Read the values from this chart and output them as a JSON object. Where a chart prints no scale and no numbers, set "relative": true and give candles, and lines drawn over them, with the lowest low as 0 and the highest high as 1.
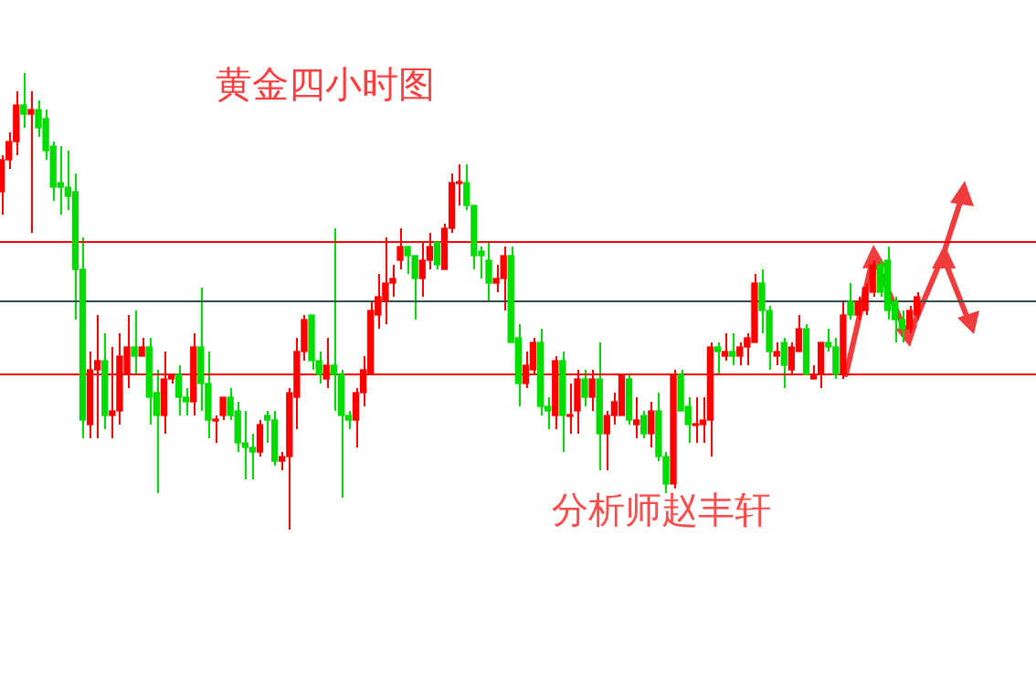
{
  "chart_data": {
    "type": "candlestick",
    "title": "黄金四小时图",
    "annotations": [
      "分析师赵丰轩"
    ],
    "relative": true,
    "tick_labels": false,
    "categories": [
      null,
      null,
      null,
      null,
      null,
      null,
      null,
      null,
      null,
      null,
      null,
      null,
      null,
      null,
      null,
      null,
      null,
      null,
      null,
      null,
      null,
      null,
      null,
      null,
      null,
      null,
      null,
      null,
      null,
      null,
      null,
      null,
      null,
      null,
      null,
      null,
      null,
      null,
      null,
      null,
      null,
      null,
      null,
      null,
      null,
      null,
      null,
      null,
      null,
      null,
      null,
      null,
      null,
      null,
      null,
      null,
      null,
      null,
      null,
      null,
      null,
      null,
      null,
      null,
      null,
      null,
      null,
      null,
      null,
      null,
      null,
      null,
      null,
      null,
      null,
      null,
      null,
      null,
      null,
      null,
      null,
      null,
      null,
      null,
      null,
      null,
      null,
      null,
      null,
      null,
      null,
      null,
      null,
      null,
      null,
      null,
      null,
      null,
      null,
      null,
      null,
      null,
      null,
      null,
      null,
      null,
      null,
      null,
      null,
      null,
      null,
      null,
      null,
      null,
      null,
      null,
      null,
      null,
      null,
      null,
      null,
      null,
      null,
      null,
      null
    ],
    "ohlc": [
      [
        0.74,
        0.82,
        0.69,
        0.81
      ],
      [
        0.81,
        0.87,
        0.79,
        0.85
      ],
      [
        0.85,
        0.96,
        0.82,
        0.93
      ],
      [
        0.93,
        1.0,
        0.88,
        0.91
      ],
      [
        0.91,
        0.96,
        0.65,
        0.92
      ],
      [
        0.92,
        0.94,
        0.86,
        0.88
      ],
      [
        0.9,
        0.92,
        0.81,
        0.83
      ],
      [
        0.84,
        0.85,
        0.72,
        0.75
      ],
      [
        0.76,
        0.84,
        0.69,
        0.75
      ],
      [
        0.75,
        0.83,
        0.7,
        0.73
      ],
      [
        0.74,
        0.78,
        0.46,
        0.57
      ],
      [
        0.57,
        0.64,
        0.2,
        0.24
      ],
      [
        0.23,
        0.39,
        0.2,
        0.35
      ],
      [
        0.35,
        0.47,
        0.2,
        0.37
      ],
      [
        0.37,
        0.43,
        0.22,
        0.25
      ],
      [
        0.25,
        0.4,
        0.2,
        0.26
      ],
      [
        0.26,
        0.43,
        0.23,
        0.38
      ],
      [
        0.34,
        0.47,
        0.31,
        0.4
      ],
      [
        0.4,
        0.48,
        0.34,
        0.38
      ],
      [
        0.38,
        0.42,
        0.38,
        0.4
      ],
      [
        0.4,
        0.42,
        0.23,
        0.29
      ],
      [
        0.3,
        0.35,
        0.08,
        0.25
      ],
      [
        0.25,
        0.39,
        0.21,
        0.33
      ],
      [
        0.33,
        0.34,
        0.32,
        0.34
      ],
      [
        0.34,
        0.36,
        0.25,
        0.29
      ],
      [
        0.29,
        0.31,
        0.25,
        0.28
      ],
      [
        0.28,
        0.43,
        0.25,
        0.4
      ],
      [
        0.4,
        0.53,
        0.26,
        0.32
      ],
      [
        0.32,
        0.39,
        0.2,
        0.24
      ],
      [
        0.24,
        0.25,
        0.19,
        0.24
      ],
      [
        0.25,
        0.29,
        0.24,
        0.29
      ],
      [
        0.29,
        0.31,
        0.24,
        0.25
      ],
      [
        0.26,
        0.28,
        0.17,
        0.19
      ],
      [
        0.19,
        0.26,
        0.11,
        0.18
      ],
      [
        0.18,
        0.21,
        0.11,
        0.17
      ],
      [
        0.17,
        0.24,
        0.16,
        0.23
      ],
      [
        0.25,
        0.26,
        0.19,
        0.24
      ],
      [
        0.24,
        0.26,
        0.14,
        0.15
      ],
      [
        0.15,
        0.17,
        0.13,
        0.16
      ],
      [
        0.16,
        0.31,
        0.0,
        0.3
      ],
      [
        0.29,
        0.42,
        0.22,
        0.39
      ],
      [
        0.39,
        0.47,
        0.37,
        0.46
      ],
      [
        0.47,
        0.47,
        0.35,
        0.37
      ],
      [
        0.37,
        0.39,
        0.32,
        0.34
      ],
      [
        0.33,
        0.42,
        0.31,
        0.36
      ],
      [
        0.36,
        0.66,
        0.26,
        0.34
      ],
      [
        0.34,
        0.35,
        0.07,
        0.25
      ],
      [
        0.25,
        0.26,
        0.22,
        0.24
      ],
      [
        0.24,
        0.31,
        0.18,
        0.3
      ],
      [
        0.3,
        0.38,
        0.27,
        0.35
      ],
      [
        0.34,
        0.5,
        0.34,
        0.48
      ],
      [
        0.47,
        0.56,
        0.44,
        0.51
      ],
      [
        0.5,
        0.64,
        0.45,
        0.54
      ],
      [
        0.54,
        0.58,
        0.51,
        0.55
      ],
      [
        0.59,
        0.66,
        0.57,
        0.62
      ],
      [
        0.62,
        0.62,
        0.56,
        0.6
      ],
      [
        0.6,
        0.6,
        0.46,
        0.55
      ],
      [
        0.55,
        0.63,
        0.51,
        0.59
      ],
      [
        0.59,
        0.65,
        0.57,
        0.62
      ],
      [
        0.63,
        0.63,
        0.57,
        0.58
      ],
      [
        0.57,
        0.67,
        0.57,
        0.66
      ],
      [
        0.66,
        0.78,
        0.65,
        0.76
      ],
      [
        0.76,
        0.8,
        0.71,
        0.76
      ],
      [
        0.76,
        0.8,
        0.7,
        0.71
      ],
      [
        0.71,
        0.71,
        0.57,
        0.6
      ],
      [
        0.61,
        0.62,
        0.55,
        0.6
      ],
      [
        0.59,
        0.63,
        0.5,
        0.54
      ],
      [
        0.54,
        0.58,
        0.52,
        0.55
      ],
      [
        0.55,
        0.62,
        0.48,
        0.6
      ],
      [
        0.6,
        0.62,
        0.41,
        0.41
      ],
      [
        0.42,
        0.45,
        0.27,
        0.32
      ],
      [
        0.32,
        0.39,
        0.31,
        0.36
      ],
      [
        0.35,
        0.42,
        0.34,
        0.41
      ],
      [
        0.41,
        0.44,
        0.25,
        0.27
      ],
      [
        0.27,
        0.29,
        0.22,
        0.26
      ],
      [
        0.25,
        0.38,
        0.22,
        0.37
      ],
      [
        0.37,
        0.39,
        0.17,
        0.25
      ],
      [
        0.25,
        0.32,
        0.21,
        0.25
      ],
      [
        0.26,
        0.35,
        0.21,
        0.33
      ],
      [
        0.33,
        0.35,
        0.27,
        0.29
      ],
      [
        0.29,
        0.35,
        0.26,
        0.33
      ],
      [
        0.33,
        0.41,
        0.13,
        0.21
      ],
      [
        0.21,
        0.26,
        0.13,
        0.25
      ],
      [
        0.25,
        0.3,
        0.23,
        0.28
      ],
      [
        0.25,
        0.34,
        0.25,
        0.34
      ],
      [
        0.33,
        0.34,
        0.23,
        0.24
      ],
      [
        0.23,
        0.29,
        0.2,
        0.24
      ],
      [
        0.25,
        0.26,
        0.2,
        0.21
      ],
      [
        0.21,
        0.28,
        0.18,
        0.26
      ],
      [
        0.26,
        0.3,
        0.15,
        0.16
      ],
      [
        0.16,
        0.17,
        0.08,
        0.1
      ],
      [
        0.1,
        0.35,
        0.09,
        0.34
      ],
      [
        0.34,
        0.35,
        0.26,
        0.26
      ],
      [
        0.27,
        0.29,
        0.19,
        0.23
      ],
      [
        0.23,
        0.29,
        0.19,
        0.23
      ],
      [
        0.23,
        0.29,
        0.19,
        0.24
      ],
      [
        0.24,
        0.41,
        0.16,
        0.4
      ],
      [
        0.4,
        0.41,
        0.34,
        0.39
      ],
      [
        0.38,
        0.43,
        0.37,
        0.39
      ],
      [
        0.39,
        0.43,
        0.36,
        0.38
      ],
      [
        0.38,
        0.41,
        0.36,
        0.4
      ],
      [
        0.4,
        0.43,
        0.36,
        0.42
      ],
      [
        0.41,
        0.56,
        0.41,
        0.54
      ],
      [
        0.54,
        0.57,
        0.43,
        0.48
      ],
      [
        0.48,
        0.49,
        0.35,
        0.39
      ],
      [
        0.38,
        0.41,
        0.36,
        0.39
      ],
      [
        0.41,
        0.42,
        0.31,
        0.36
      ],
      [
        0.35,
        0.41,
        0.34,
        0.4
      ],
      [
        0.39,
        0.47,
        0.39,
        0.44
      ],
      [
        0.44,
        0.45,
        0.34,
        0.34
      ],
      [
        0.33,
        0.36,
        0.33,
        0.34
      ],
      [
        0.34,
        0.41,
        0.31,
        0.41
      ],
      [
        0.41,
        0.44,
        0.39,
        0.4
      ],
      [
        0.4,
        0.42,
        0.33,
        0.34
      ],
      [
        0.34,
        0.5,
        0.33,
        0.47
      ],
      [
        0.5,
        0.54,
        0.46,
        0.47
      ],
      [
        0.47,
        0.51,
        0.46,
        0.5
      ],
      [
        0.48,
        0.54,
        0.47,
        0.53
      ],
      [
        0.52,
        0.59,
        0.51,
        0.58
      ],
      [
        0.58,
        0.59,
        0.51,
        0.52
      ],
      [
        0.59,
        0.62,
        0.46,
        0.48
      ],
      [
        0.5,
        0.51,
        0.41,
        0.46
      ],
      [
        0.46,
        0.48,
        0.41,
        0.44
      ],
      [
        0.44,
        0.49,
        0.43,
        0.48
      ],
      [
        0.47,
        0.52,
        0.46,
        0.51
      ]
    ],
    "ref_lines": [
      {
        "axis": "y",
        "value": 0.63,
        "color": "#ff0000"
      },
      {
        "axis": "y",
        "value": 0.5,
        "color": "#2f4f4f"
      },
      {
        "axis": "y",
        "value": 0.34,
        "color": "#ff0000"
      }
    ]
  }
}
